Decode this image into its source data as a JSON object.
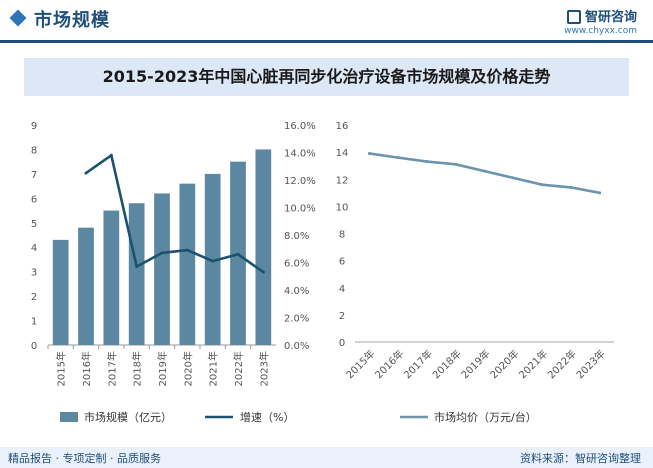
{
  "header": {
    "title": "市场规模",
    "brand_name": "智研咨询",
    "brand_url": "www.chyxx.com"
  },
  "chart_title": "2015-2023年中国心脏再同步化治疗设备市场规模及价格走势",
  "footer": {
    "left": "精品报告 · 专项定制 · 品质服务",
    "right": "资料来源：智研咨询整理"
  },
  "colors": {
    "bar": "#5b87a0",
    "growth_line": "#1b5270",
    "price_line": "#6c95ad",
    "accent": "#1f4e79"
  },
  "chart_data": [
    {
      "type": "bar",
      "categories": [
        "2015年",
        "2016年",
        "2017年",
        "2018年",
        "2019年",
        "2020年",
        "2021年",
        "2022年",
        "2023年"
      ],
      "series": [
        {
          "name": "市场规模（亿元）",
          "type": "bar",
          "axis": "left",
          "values": [
            4.3,
            4.8,
            5.5,
            5.8,
            6.2,
            6.6,
            7.0,
            7.5,
            8.0
          ]
        },
        {
          "name": "增速（%）",
          "type": "line",
          "axis": "right",
          "values": [
            null,
            12.5,
            13.8,
            5.7,
            6.7,
            6.9,
            6.1,
            6.6,
            5.3
          ]
        }
      ],
      "yticks_left": [
        "0",
        "1",
        "2",
        "3",
        "4",
        "5",
        "6",
        "7",
        "8",
        "9"
      ],
      "ylim_left": [
        0,
        9
      ],
      "yticks_right": [
        "0.0%",
        "2.0%",
        "4.0%",
        "6.0%",
        "8.0%",
        "10.0%",
        "12.0%",
        "14.0%",
        "16.0%"
      ],
      "ylim_right": [
        0,
        16
      ],
      "legend_position": "bottom",
      "grid": false
    },
    {
      "type": "line",
      "categories": [
        "2015年",
        "2016年",
        "2017年",
        "2018年",
        "2019年",
        "2020年",
        "2021年",
        "2022年",
        "2023年"
      ],
      "series": [
        {
          "name": "市场均价（万元/台）",
          "values": [
            13.9,
            13.6,
            13.3,
            13.1,
            12.6,
            12.1,
            11.6,
            11.4,
            11.0
          ]
        }
      ],
      "yticks": [
        "0",
        "2",
        "4",
        "6",
        "8",
        "10",
        "12",
        "14",
        "16"
      ],
      "ylim": [
        0,
        16
      ],
      "legend_position": "bottom",
      "grid": false
    }
  ]
}
